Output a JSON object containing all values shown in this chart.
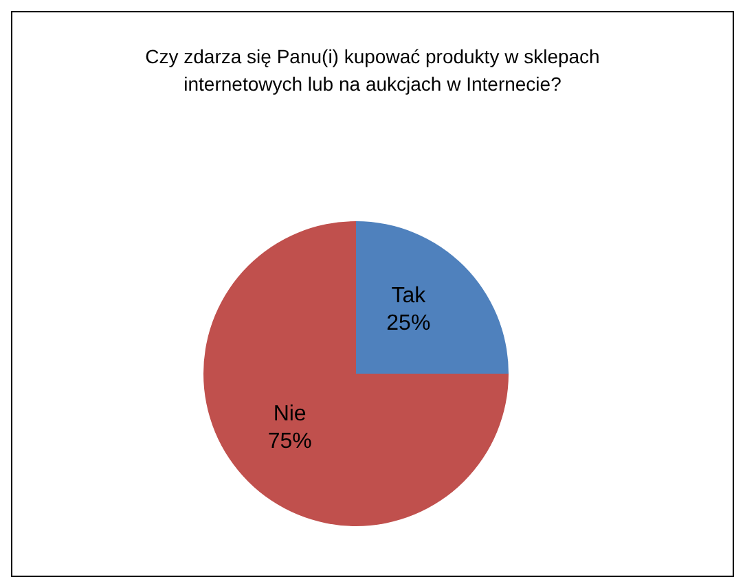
{
  "chart_data": {
    "type": "pie",
    "title": "Czy zdarza się Panu(i) kupować produkty w sklepach internetowych lub na aukcjach w Internecie?",
    "categories": [
      "Tak",
      "Nie"
    ],
    "values": [
      25,
      75
    ],
    "value_labels": [
      "25%",
      "75%"
    ],
    "colors": [
      "#4f81bd",
      "#c0504d"
    ],
    "legend": false
  }
}
